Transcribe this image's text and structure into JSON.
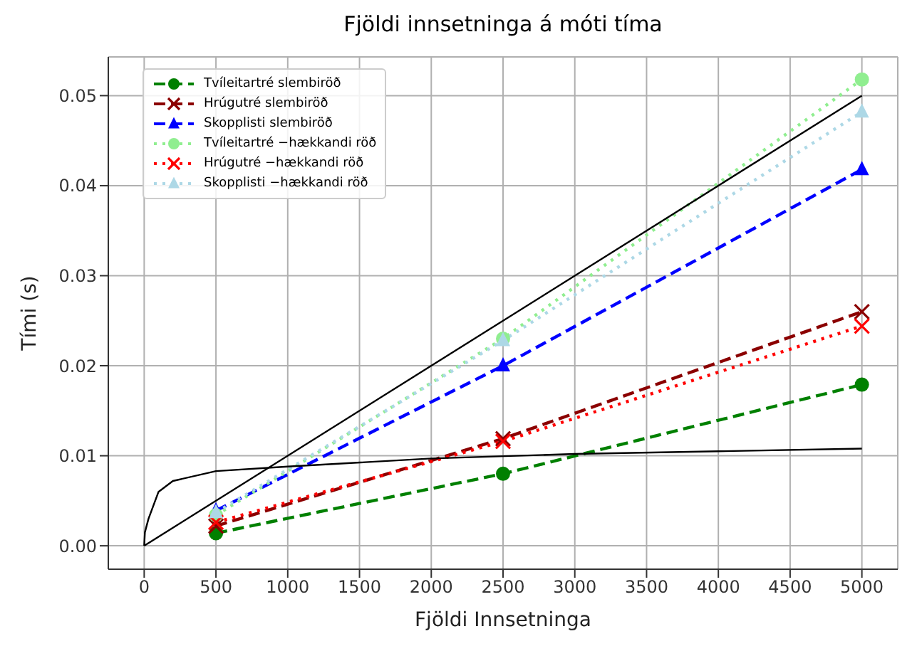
{
  "chart_data": {
    "type": "line",
    "title": "Fjöldi innsetninga á móti tíma",
    "xlabel": "Fjöldi Innsetninga",
    "ylabel": "Tími (s)",
    "x": [
      500,
      2500,
      5000
    ],
    "series": [
      {
        "name": "Tvíleitartré slembiröð",
        "color": "#008000",
        "values": [
          0.0014,
          0.008,
          0.0179
        ],
        "marker": "circle",
        "line_style": "dashed"
      },
      {
        "name": "Hrúgutré slembiröð",
        "color": "#8b0000",
        "values": [
          0.0022,
          0.0119,
          0.026
        ],
        "marker": "cross",
        "line_style": "dashed"
      },
      {
        "name": "Skopplisti slembiröð",
        "color": "#0000ff",
        "values": [
          0.0039,
          0.02,
          0.0418
        ],
        "marker": "triangle",
        "line_style": "dashed"
      },
      {
        "name": "Tvíleitartré −hækkandi röð",
        "color": "#90ee90",
        "values": [
          0.0034,
          0.023,
          0.0518
        ],
        "marker": "circle",
        "line_style": "dotted"
      },
      {
        "name": "Hrúgutré −hækkandi röð",
        "color": "#ff0000",
        "values": [
          0.0026,
          0.0116,
          0.0244
        ],
        "marker": "cross",
        "line_style": "dotted"
      },
      {
        "name": "Skopplisti −hækkandi röð",
        "color": "#add8e6",
        "values": [
          0.0037,
          0.0228,
          0.0482
        ],
        "marker": "triangle",
        "line_style": "dotted"
      },
      {
        "color": "#000000",
        "x": [
          0,
          5000
        ],
        "values": [
          0,
          0.05
        ],
        "marker": "none",
        "line_style": "solid"
      },
      {
        "color": "#000000",
        "x": [
          0,
          5,
          30,
          100,
          200,
          500,
          1000,
          2000,
          3000,
          4000,
          5000
        ],
        "values": [
          0,
          0.0015,
          0.003,
          0.006,
          0.0072,
          0.0083,
          0.0088,
          0.0097,
          0.0102,
          0.0105,
          0.0108
        ],
        "marker": "none",
        "line_style": "solid"
      }
    ],
    "xlim": [
      -250,
      5250
    ],
    "xticks": [
      0,
      500,
      1000,
      1500,
      2000,
      2500,
      3000,
      3500,
      4000,
      4500,
      5000
    ],
    "ylim": [
      -0.0026,
      0.0543
    ],
    "yticks": [
      {
        "value": 0,
        "label": "0.00"
      },
      {
        "value": 0.01,
        "label": "0.01"
      },
      {
        "value": 0.02,
        "label": "0.02"
      },
      {
        "value": 0.03,
        "label": "0.03"
      },
      {
        "value": 0.04,
        "label": "0.04"
      },
      {
        "value": 0.05,
        "label": "0.05"
      }
    ],
    "grid": true,
    "legend": "top left"
  }
}
